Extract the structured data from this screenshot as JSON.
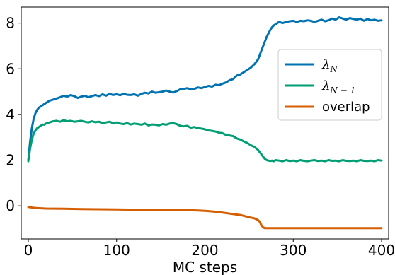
{
  "chart_data": {
    "type": "line",
    "xlabel": "MC steps",
    "ylabel": "",
    "xlim": [
      -8,
      408
    ],
    "ylim": [
      -1.45,
      8.7
    ],
    "xticks": [
      0,
      100,
      200,
      300,
      400
    ],
    "yticks": [
      0,
      2,
      4,
      6,
      8
    ],
    "grid": false,
    "legend_position": "center-right",
    "series": [
      {
        "name": "λ_N",
        "legend_main": "λ",
        "legend_sub": "N",
        "color": "#0072B2",
        "x": [
          0,
          2,
          4,
          6,
          8,
          10,
          12,
          14,
          16,
          18,
          20,
          24,
          28,
          32,
          36,
          40,
          44,
          48,
          52,
          56,
          60,
          64,
          68,
          72,
          76,
          80,
          84,
          88,
          92,
          96,
          100,
          104,
          108,
          112,
          116,
          120,
          124,
          128,
          132,
          136,
          140,
          144,
          148,
          152,
          156,
          160,
          164,
          168,
          172,
          176,
          180,
          184,
          188,
          192,
          196,
          200,
          204,
          208,
          212,
          216,
          220,
          224,
          228,
          232,
          236,
          240,
          244,
          248,
          252,
          256,
          260,
          262,
          264,
          266,
          268,
          270,
          272,
          274,
          276,
          278,
          280,
          284,
          288,
          292,
          296,
          300,
          304,
          308,
          312,
          316,
          320,
          324,
          328,
          332,
          336,
          340,
          344,
          348,
          352,
          356,
          360,
          364,
          368,
          372,
          376,
          380,
          384,
          388,
          392,
          396,
          400
        ],
        "y": [
          2.0,
          2.8,
          3.4,
          3.8,
          4.05,
          4.2,
          4.3,
          4.35,
          4.4,
          4.45,
          4.5,
          4.6,
          4.65,
          4.7,
          4.75,
          4.82,
          4.78,
          4.85,
          4.8,
          4.72,
          4.78,
          4.82,
          4.75,
          4.8,
          4.85,
          4.8,
          4.88,
          4.82,
          4.9,
          4.85,
          4.88,
          4.84,
          4.9,
          4.86,
          4.85,
          4.88,
          4.82,
          4.9,
          4.95,
          4.92,
          5.0,
          4.95,
          4.97,
          5.0,
          5.05,
          5.0,
          4.96,
          5.02,
          5.1,
          5.12,
          5.15,
          5.1,
          5.12,
          5.18,
          5.15,
          5.2,
          5.25,
          5.22,
          5.3,
          5.28,
          5.35,
          5.4,
          5.5,
          5.55,
          5.7,
          5.75,
          5.85,
          5.95,
          6.05,
          6.2,
          6.4,
          6.6,
          6.8,
          7.0,
          7.2,
          7.4,
          7.55,
          7.7,
          7.82,
          7.9,
          7.95,
          8.05,
          8.0,
          8.05,
          8.08,
          8.1,
          8.05,
          8.1,
          8.08,
          8.12,
          8.1,
          8.05,
          8.1,
          8.15,
          8.08,
          8.12,
          8.2,
          8.15,
          8.25,
          8.2,
          8.15,
          8.22,
          8.18,
          8.15,
          8.2,
          8.1,
          8.18,
          8.12,
          8.15,
          8.1,
          8.12
        ]
      },
      {
        "name": "λ_N-1",
        "legend_main": "λ",
        "legend_sub": "N − 1",
        "color": "#009E73",
        "x": [
          0,
          2,
          4,
          6,
          8,
          10,
          12,
          14,
          16,
          18,
          20,
          24,
          28,
          32,
          36,
          40,
          44,
          48,
          52,
          56,
          60,
          64,
          68,
          72,
          76,
          80,
          84,
          88,
          92,
          96,
          100,
          104,
          108,
          112,
          116,
          120,
          124,
          128,
          132,
          136,
          140,
          144,
          148,
          152,
          156,
          160,
          164,
          168,
          172,
          176,
          180,
          184,
          188,
          192,
          196,
          200,
          204,
          208,
          212,
          216,
          220,
          224,
          228,
          232,
          236,
          240,
          244,
          248,
          252,
          256,
          260,
          262,
          264,
          266,
          268,
          270,
          272,
          274,
          276,
          278,
          280,
          284,
          288,
          292,
          296,
          300,
          304,
          308,
          312,
          316,
          320,
          324,
          328,
          332,
          336,
          340,
          344,
          348,
          352,
          356,
          360,
          364,
          368,
          372,
          376,
          380,
          384,
          388,
          392,
          396,
          400
        ],
        "y": [
          1.95,
          2.5,
          2.9,
          3.15,
          3.3,
          3.4,
          3.45,
          3.5,
          3.55,
          3.55,
          3.6,
          3.65,
          3.7,
          3.72,
          3.68,
          3.75,
          3.7,
          3.72,
          3.68,
          3.7,
          3.72,
          3.68,
          3.65,
          3.7,
          3.66,
          3.68,
          3.62,
          3.65,
          3.68,
          3.62,
          3.65,
          3.6,
          3.58,
          3.62,
          3.56,
          3.6,
          3.58,
          3.55,
          3.6,
          3.52,
          3.56,
          3.55,
          3.52,
          3.58,
          3.55,
          3.6,
          3.62,
          3.58,
          3.5,
          3.48,
          3.5,
          3.42,
          3.45,
          3.4,
          3.38,
          3.35,
          3.3,
          3.28,
          3.25,
          3.2,
          3.18,
          3.1,
          3.08,
          3.05,
          2.95,
          2.9,
          2.82,
          2.75,
          2.65,
          2.58,
          2.45,
          2.35,
          2.25,
          2.15,
          2.05,
          2.0,
          1.98,
          1.96,
          1.98,
          1.95,
          2.0,
          1.98,
          1.95,
          2.0,
          1.96,
          1.98,
          1.95,
          2.0,
          1.97,
          1.95,
          1.98,
          2.0,
          1.96,
          1.98,
          1.95,
          2.0,
          1.97,
          1.98,
          1.95,
          2.0,
          1.97,
          1.96,
          1.98,
          1.95,
          2.0,
          1.97,
          1.96,
          1.98,
          1.95,
          2.0,
          1.98
        ]
      },
      {
        "name": "overlap",
        "legend_main": "overlap",
        "legend_sub": "",
        "color": "#D55E00",
        "x": [
          0,
          5,
          10,
          20,
          40,
          60,
          80,
          100,
          120,
          140,
          160,
          180,
          190,
          200,
          210,
          220,
          230,
          240,
          250,
          256,
          260,
          262,
          264,
          266,
          268,
          270,
          280,
          300,
          320,
          340,
          360,
          380,
          400
        ],
        "y": [
          -0.05,
          -0.08,
          -0.1,
          -0.12,
          -0.13,
          -0.14,
          -0.15,
          -0.16,
          -0.17,
          -0.18,
          -0.18,
          -0.19,
          -0.2,
          -0.22,
          -0.25,
          -0.3,
          -0.35,
          -0.4,
          -0.5,
          -0.55,
          -0.62,
          -0.7,
          -0.85,
          -0.95,
          -0.98,
          -0.98,
          -0.98,
          -0.98,
          -0.98,
          -0.98,
          -0.98,
          -0.98,
          -0.98
        ]
      }
    ]
  }
}
